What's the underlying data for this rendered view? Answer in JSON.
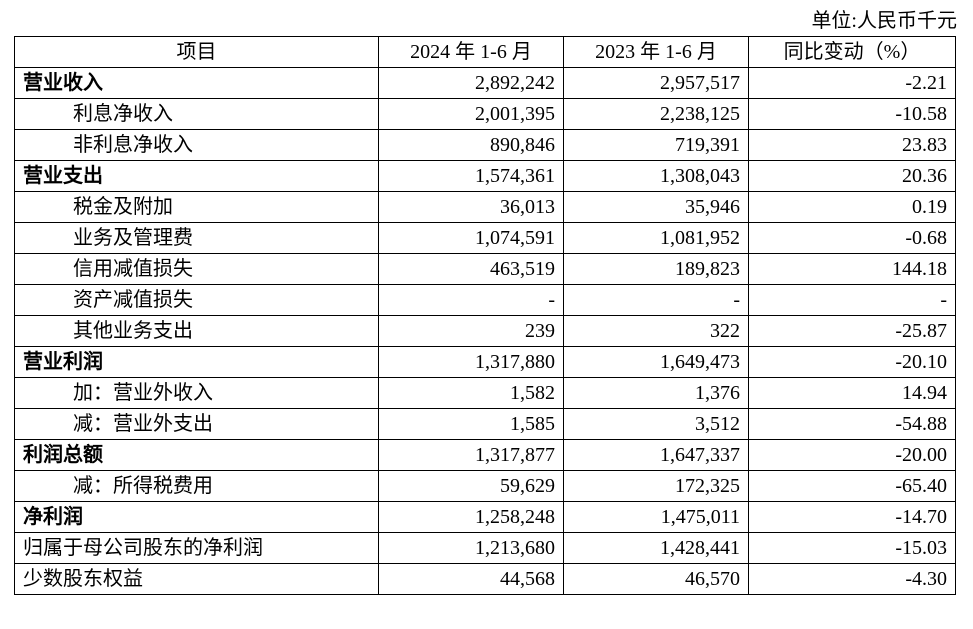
{
  "unit": "单位:人民币千元",
  "table": {
    "header": [
      "项目",
      "2024 年 1-6 月",
      "2023 年 1-6 月",
      "同比变动（%）"
    ],
    "rows": [
      [
        "营业收入",
        "2,892,242",
        "2,957,517",
        "-2.21"
      ],
      [
        "利息净收入",
        "2,001,395",
        "2,238,125",
        "-10.58"
      ],
      [
        "非利息净收入",
        "890,846",
        "719,391",
        "23.83"
      ],
      [
        "营业支出",
        "1,574,361",
        "1,308,043",
        "20.36"
      ],
      [
        "税金及附加",
        "36,013",
        "35,946",
        "0.19"
      ],
      [
        "业务及管理费",
        "1,074,591",
        "1,081,952",
        "-0.68"
      ],
      [
        "信用减值损失",
        "463,519",
        "189,823",
        "144.18"
      ],
      [
        "资产减值损失",
        "-",
        "-",
        "-"
      ],
      [
        "其他业务支出",
        "239",
        "322",
        "-25.87"
      ],
      [
        "营业利润",
        "1,317,880",
        "1,649,473",
        "-20.10"
      ],
      [
        "加：营业外收入",
        "1,582",
        "1,376",
        "14.94"
      ],
      [
        "减：营业外支出",
        "1,585",
        "3,512",
        "-54.88"
      ],
      [
        "利润总额",
        "1,317,877",
        "1,647,337",
        "-20.00"
      ],
      [
        "减：所得税费用",
        "59,629",
        "172,325",
        "-65.40"
      ],
      [
        "净利润",
        "1,258,248",
        "1,475,011",
        "-14.70"
      ],
      [
        "归属于母公司股东的净利润",
        "1,213,680",
        "1,428,441",
        "-15.03"
      ],
      [
        "少数股东权益",
        "44,568",
        "46,570",
        "-4.30"
      ]
    ]
  }
}
